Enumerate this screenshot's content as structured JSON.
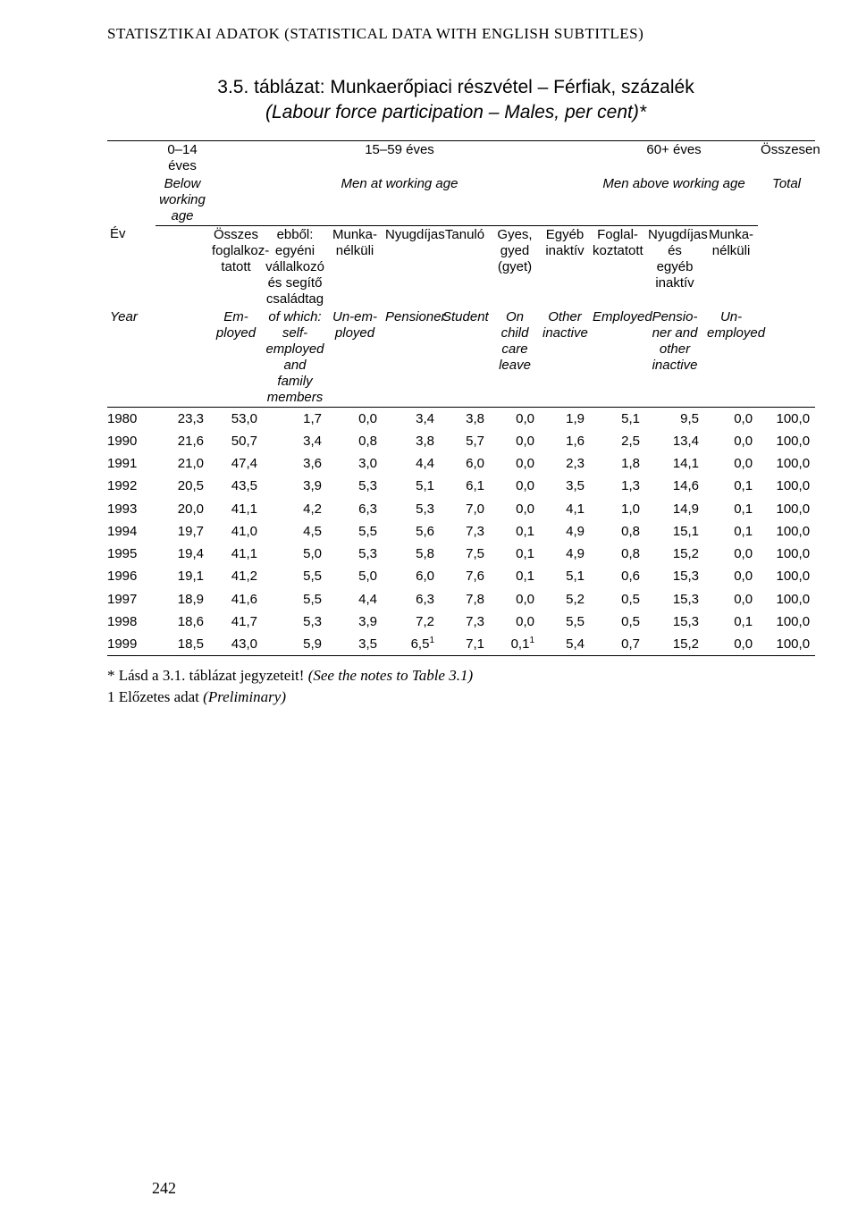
{
  "running_head": "STATISZTIKAI ADATOK (STATISTICAL DATA WITH ENGLISH SUBTITLES)",
  "title_line1": "3.5. táblázat: Munkaerőpiaci részvétel – Férfiak, százalék",
  "title_line2": "(Labour force participation – Males, per cent)*",
  "header": {
    "blank": "",
    "age_0_14": "0–14 éves",
    "age_15_59": "15–59 éves",
    "age_60p": "60+ éves",
    "osszesen": "Összesen",
    "below_working": "Below working age",
    "men_working": "Men at working age",
    "men_above": "Men above working age",
    "total": "Total",
    "ev": "Év",
    "year": "Year",
    "h_osszes": "Összes foglalkoz-tatott",
    "h_ebbol": "ebből: egyéni vállalkozó és segítő családtag",
    "h_munkanelkuli": "Munka-nélküli",
    "h_nyugdijas": "Nyugdíjas",
    "h_tanulo": "Tanuló",
    "h_gyes": "Gyes, gyed (gyet)",
    "h_egyeb": "Egyéb inaktív",
    "h_foglalk": "Foglal-koztatott",
    "h_nyugd2": "Nyugdíjas és egyéb inaktív",
    "h_munkanelkuli2": "Munka-nélküli",
    "e_employed": "Em-ployed",
    "e_ofwhich": "of which: self-employed and family members",
    "e_unemp": "Un-em-ployed",
    "e_pensioner": "Pensioner",
    "e_student": "Student",
    "e_child": "On child care leave",
    "e_other": "Other inactive",
    "e_employed2": "Employed",
    "e_pens2": "Pensio-ner and other inactive",
    "e_unemp2": "Un-employed"
  },
  "rows": [
    {
      "y": "1980",
      "c": [
        "23,3",
        "53,0",
        "1,7",
        "0,0",
        "3,4",
        "3,8",
        "0,0",
        "1,9",
        "5,1",
        "9,5",
        "0,0",
        "100,0"
      ]
    },
    {
      "y": "1990",
      "c": [
        "21,6",
        "50,7",
        "3,4",
        "0,8",
        "3,8",
        "5,7",
        "0,0",
        "1,6",
        "2,5",
        "13,4",
        "0,0",
        "100,0"
      ]
    },
    {
      "y": "1991",
      "c": [
        "21,0",
        "47,4",
        "3,6",
        "3,0",
        "4,4",
        "6,0",
        "0,0",
        "2,3",
        "1,8",
        "14,1",
        "0,0",
        "100,0"
      ]
    },
    {
      "y": "1992",
      "c": [
        "20,5",
        "43,5",
        "3,9",
        "5,3",
        "5,1",
        "6,1",
        "0,0",
        "3,5",
        "1,3",
        "14,6",
        "0,1",
        "100,0"
      ]
    },
    {
      "y": "1993",
      "c": [
        "20,0",
        "41,1",
        "4,2",
        "6,3",
        "5,3",
        "7,0",
        "0,0",
        "4,1",
        "1,0",
        "14,9",
        "0,1",
        "100,0"
      ]
    },
    {
      "y": "1994",
      "c": [
        "19,7",
        "41,0",
        "4,5",
        "5,5",
        "5,6",
        "7,3",
        "0,1",
        "4,9",
        "0,8",
        "15,1",
        "0,1",
        "100,0"
      ]
    },
    {
      "y": "1995",
      "c": [
        "19,4",
        "41,1",
        "5,0",
        "5,3",
        "5,8",
        "7,5",
        "0,1",
        "4,9",
        "0,8",
        "15,2",
        "0,0",
        "100,0"
      ]
    },
    {
      "y": "1996",
      "c": [
        "19,1",
        "41,2",
        "5,5",
        "5,0",
        "6,0",
        "7,6",
        "0,1",
        "5,1",
        "0,6",
        "15,3",
        "0,0",
        "100,0"
      ]
    },
    {
      "y": "1997",
      "c": [
        "18,9",
        "41,6",
        "5,5",
        "4,4",
        "6,3",
        "7,8",
        "0,0",
        "5,2",
        "0,5",
        "15,3",
        "0,0",
        "100,0"
      ]
    },
    {
      "y": "1998",
      "c": [
        "18,6",
        "41,7",
        "5,3",
        "3,9",
        "7,2",
        "7,3",
        "0,0",
        "5,5",
        "0,5",
        "15,3",
        "0,1",
        "100,0"
      ]
    },
    {
      "y": "1999",
      "c": [
        "18,5",
        "43,0",
        "5,9",
        "3,5",
        "6,5¹",
        "7,1",
        "0,1¹",
        "5,4",
        "0,7",
        "15,2",
        "0,0",
        "100,0"
      ],
      "sup": [
        4,
        6
      ]
    }
  ],
  "footnote1_a": "* Lásd a 3.1. táblázat jegyzeteit! ",
  "footnote1_b": "(See the notes to Table 3.1)",
  "footnote2_a": "1 Előzetes adat ",
  "footnote2_b": "(Preliminary)",
  "page_number": "242",
  "colors": {
    "text": "#000000",
    "background": "#ffffff",
    "rule": "#000000"
  }
}
